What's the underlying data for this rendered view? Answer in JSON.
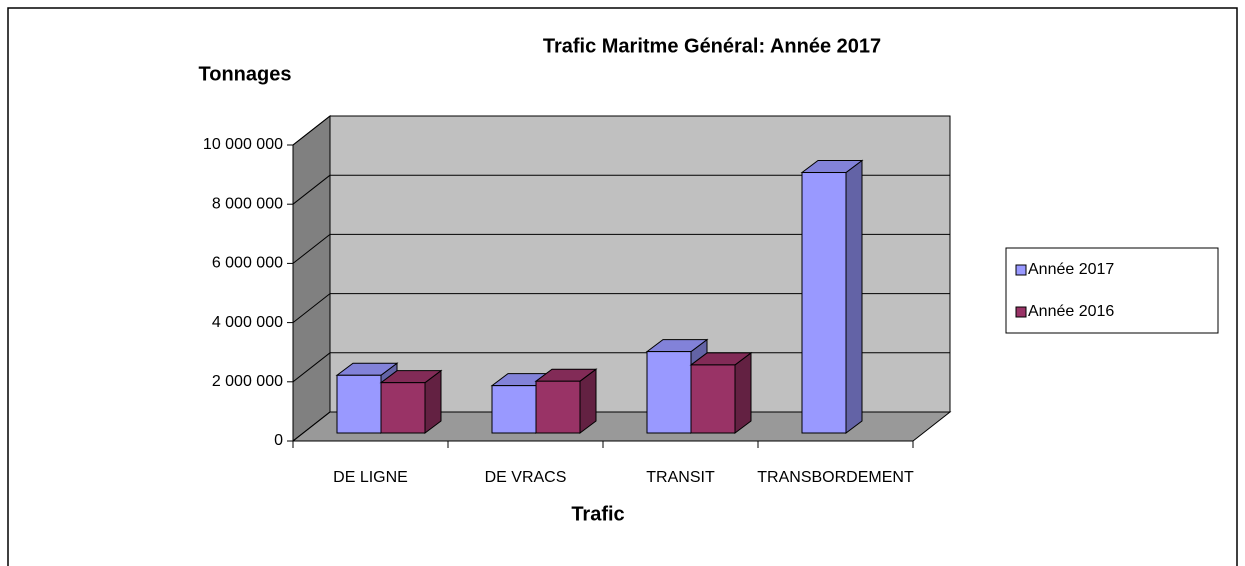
{
  "chart_data": {
    "type": "bar3d",
    "title": "Trafic Maritme Général: Année 2017",
    "y_label": "Tonnages",
    "x_label": "Trafic",
    "categories": [
      "DE LIGNE",
      "DE VRACS",
      "TRANSIT",
      "TRANSBORDEMENT"
    ],
    "series": [
      {
        "name": "Année  2017",
        "color": "#9999ff",
        "values": [
          1950000,
          1600000,
          2750000,
          8800000
        ]
      },
      {
        "name": "Année  2016",
        "color": "#993366",
        "values": [
          1700000,
          1750000,
          2300000,
          null
        ]
      }
    ],
    "ylim": [
      0,
      10000000
    ],
    "yticks": [
      0,
      {
        "value": 2000000,
        "label": "2 000 000"
      },
      {
        "value": 4000000,
        "label": "4 000 000"
      },
      {
        "value": 6000000,
        "label": "6 000 000"
      },
      {
        "value": 8000000,
        "label": "8 000 000"
      },
      {
        "value": 10000000,
        "label": "10 000 000"
      }
    ],
    "grid": true,
    "legend": "right"
  }
}
